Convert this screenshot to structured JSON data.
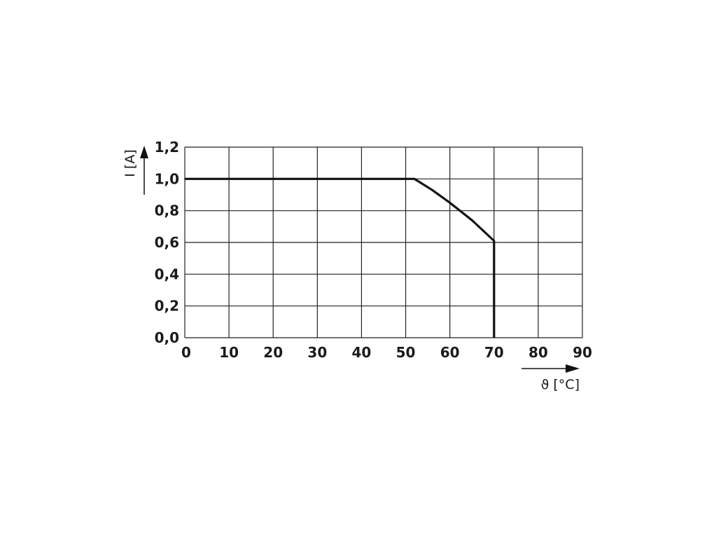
{
  "chart_data": {
    "type": "line",
    "xlabel": "ϑ [°C]",
    "ylabel": "I [A]",
    "xlim": [
      0,
      90
    ],
    "ylim": [
      0,
      1.2
    ],
    "grid": true,
    "x_ticks": [
      "0",
      "10",
      "20",
      "30",
      "40",
      "50",
      "60",
      "70",
      "80",
      "90"
    ],
    "y_ticks": [
      "0,0",
      "0,2",
      "0,4",
      "0,6",
      "0,8",
      "1,0",
      "1,2"
    ],
    "series": [
      {
        "x": [
          0,
          52,
          56,
          60,
          65,
          70,
          70
        ],
        "y": [
          1.0,
          1.0,
          0.93,
          0.85,
          0.74,
          0.61,
          0.0
        ]
      }
    ],
    "colors": {
      "line": "#111111",
      "grid": "#222222"
    }
  }
}
